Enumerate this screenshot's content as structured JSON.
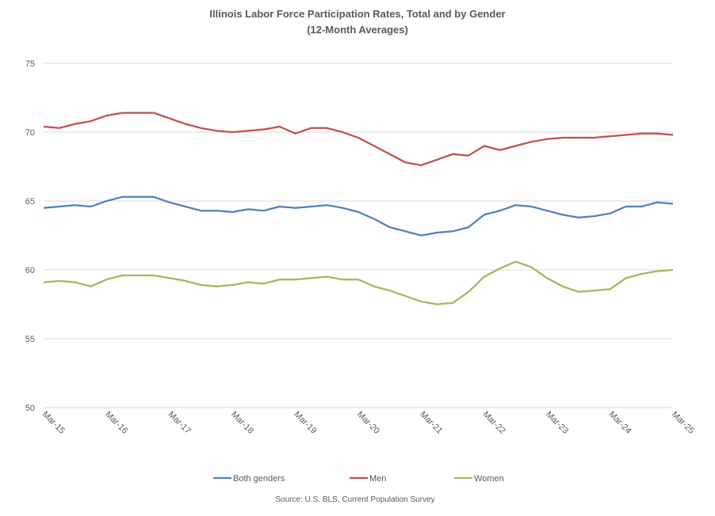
{
  "chart_data": {
    "type": "line",
    "title": "Illinois Labor Force Participation Rates, Total and by Gender",
    "subtitle": "(12-Month Averages)",
    "source": "Source: U.S. BLS, Current Population Survey",
    "xlabel": "",
    "ylabel": "",
    "ylim": [
      50,
      75
    ],
    "y_ticks": [
      "50",
      "55",
      "60",
      "65",
      "70",
      "75"
    ],
    "x_tick_labels": [
      "Mar-15",
      "Mar-16",
      "Mar-17",
      "Mar-18",
      "Mar-19",
      "Mar-20",
      "Mar-21",
      "Mar-22",
      "Mar-23",
      "Mar-24",
      "Mar-25"
    ],
    "x": [
      "Mar-15",
      "Jun-15",
      "Sep-15",
      "Dec-15",
      "Mar-16",
      "Jun-16",
      "Sep-16",
      "Dec-16",
      "Mar-17",
      "Jun-17",
      "Sep-17",
      "Dec-17",
      "Mar-18",
      "Jun-18",
      "Sep-18",
      "Dec-18",
      "Mar-19",
      "Jun-19",
      "Sep-19",
      "Dec-19",
      "Mar-20",
      "Jun-20",
      "Sep-20",
      "Dec-20",
      "Mar-21",
      "Jun-21",
      "Sep-21",
      "Dec-21",
      "Mar-22",
      "Jun-22",
      "Sep-22",
      "Dec-22",
      "Mar-23",
      "Jun-23",
      "Sep-23",
      "Dec-23",
      "Mar-24",
      "Jun-24",
      "Sep-24",
      "Dec-24",
      "Mar-25"
    ],
    "grid": true,
    "legend": "bottom",
    "series": [
      {
        "name": "Both genders",
        "color": "#4F81BD",
        "values": [
          64.5,
          64.6,
          64.7,
          64.6,
          65.0,
          65.3,
          65.3,
          65.3,
          64.9,
          64.6,
          64.3,
          64.3,
          64.2,
          64.4,
          64.3,
          64.6,
          64.5,
          64.6,
          64.7,
          64.5,
          64.2,
          63.7,
          63.1,
          62.8,
          62.5,
          62.7,
          62.8,
          63.1,
          64.0,
          64.3,
          64.7,
          64.6,
          64.3,
          64.0,
          63.8,
          63.9,
          64.1,
          64.6,
          64.6,
          64.9,
          64.8
        ]
      },
      {
        "name": "Men",
        "color": "#C0504D",
        "values": [
          70.4,
          70.3,
          70.6,
          70.8,
          71.2,
          71.4,
          71.4,
          71.4,
          71.0,
          70.6,
          70.3,
          70.1,
          70.0,
          70.1,
          70.2,
          70.4,
          69.9,
          70.3,
          70.3,
          70.0,
          69.6,
          69.0,
          68.4,
          67.8,
          67.6,
          68.0,
          68.4,
          68.3,
          69.0,
          68.7,
          69.0,
          69.3,
          69.5,
          69.6,
          69.6,
          69.6,
          69.7,
          69.8,
          69.9,
          69.9,
          69.8
        ]
      },
      {
        "name": "Women",
        "color": "#9BBB59",
        "values": [
          59.1,
          59.2,
          59.1,
          58.8,
          59.3,
          59.6,
          59.6,
          59.6,
          59.4,
          59.2,
          58.9,
          58.8,
          58.9,
          59.1,
          59.0,
          59.3,
          59.3,
          59.4,
          59.5,
          59.3,
          59.3,
          58.8,
          58.5,
          58.1,
          57.7,
          57.5,
          57.6,
          58.4,
          59.5,
          60.1,
          60.6,
          60.2,
          59.4,
          58.8,
          58.4,
          58.5,
          58.6,
          59.4,
          59.7,
          59.9,
          60.0
        ]
      }
    ]
  }
}
